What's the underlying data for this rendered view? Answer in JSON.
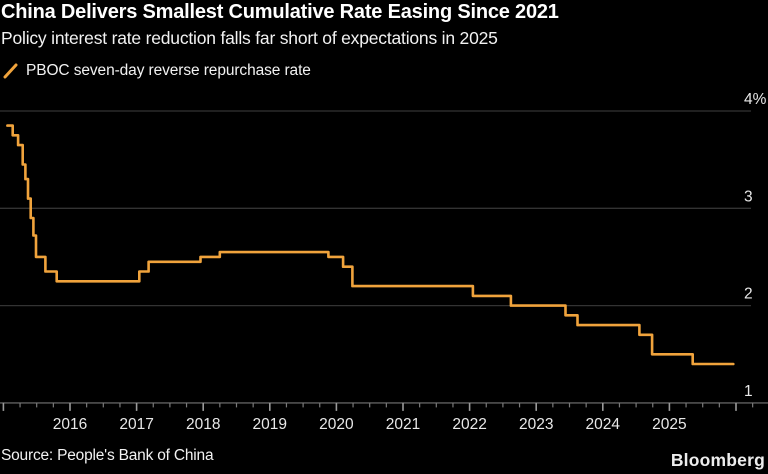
{
  "header": {
    "title": "China Delivers Smallest Cumulative Rate Easing Since 2021",
    "subtitle": "Policy interest rate reduction falls far short of expectations in 2025"
  },
  "legend": {
    "label": "PBOC seven-day reverse repurchase rate",
    "marker_color": "#f0a33c"
  },
  "footer": {
    "source": "Source: People's Bank of China",
    "brand": "Bloomberg"
  },
  "colors": {
    "background": "#000000",
    "line": "#f0a33c",
    "gridline": "#333333",
    "axis_line": "#5f5f5f",
    "tick": "#8a8a8a",
    "tick_label": "#e8e8e8"
  },
  "chart_data": {
    "type": "line",
    "line_style": "step-after",
    "title": "China Delivers Smallest Cumulative Rate Easing Since 2021",
    "subtitle": "Policy interest rate reduction falls far short of expectations in 2025",
    "source": "Source: People's Bank of China",
    "legend_position": "top-left",
    "grid": "horizontal",
    "xlabel": "",
    "ylabel": "",
    "x_range": [
      2014.95,
      2026.55
    ],
    "ylim": [
      0.95,
      4.2
    ],
    "y_ticks": [
      {
        "value": 4,
        "label": "4%"
      },
      {
        "value": 3,
        "label": "3"
      },
      {
        "value": 2,
        "label": "2"
      },
      {
        "value": 1,
        "label": "1"
      }
    ],
    "x_ticks_labeled": [
      "2016",
      "2017",
      "2018",
      "2019",
      "2020",
      "2021",
      "2022",
      "2023",
      "2024",
      "2025"
    ],
    "x_minor_tick_interval_years": 0.25,
    "series": [
      {
        "name": "PBOC seven-day reverse repurchase rate",
        "color": "#f0a33c",
        "unit": "%",
        "points": [
          [
            2015.06,
            3.85
          ],
          [
            2015.14,
            3.75
          ],
          [
            2015.22,
            3.65
          ],
          [
            2015.29,
            3.45
          ],
          [
            2015.33,
            3.3
          ],
          [
            2015.37,
            3.1
          ],
          [
            2015.41,
            2.9
          ],
          [
            2015.45,
            2.72
          ],
          [
            2015.49,
            2.5
          ],
          [
            2015.63,
            2.35
          ],
          [
            2015.8,
            2.25
          ],
          [
            2017.04,
            2.35
          ],
          [
            2017.18,
            2.45
          ],
          [
            2017.96,
            2.5
          ],
          [
            2018.25,
            2.55
          ],
          [
            2019.88,
            2.5
          ],
          [
            2020.1,
            2.4
          ],
          [
            2020.24,
            2.2
          ],
          [
            2022.05,
            2.1
          ],
          [
            2022.62,
            2.0
          ],
          [
            2023.44,
            1.9
          ],
          [
            2023.62,
            1.8
          ],
          [
            2024.55,
            1.7
          ],
          [
            2024.74,
            1.5
          ],
          [
            2025.35,
            1.4
          ],
          [
            2025.96,
            1.4
          ]
        ]
      }
    ]
  }
}
